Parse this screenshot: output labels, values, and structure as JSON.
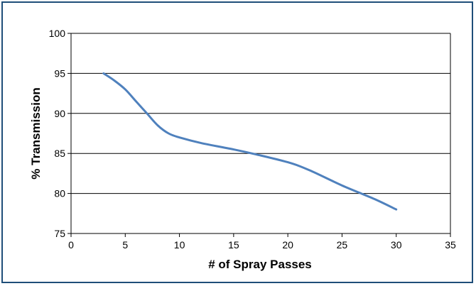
{
  "chart_data": {
    "type": "line",
    "title": "",
    "xlabel": "# of Spray Passes",
    "ylabel": "% Transmission",
    "xlim": [
      0,
      35
    ],
    "ylim": [
      75,
      100
    ],
    "xticks": [
      "0",
      "5",
      "10",
      "15",
      "20",
      "25",
      "30",
      "35"
    ],
    "yticks": [
      "75",
      "80",
      "85",
      "90",
      "95",
      "100"
    ],
    "grid": "horizontal",
    "legend": "none",
    "series": [
      {
        "color": "#4f81bd",
        "x": [
          3,
          4,
          5,
          6,
          7,
          8,
          9,
          10,
          12,
          15,
          17,
          20,
          22,
          25,
          28,
          30
        ],
        "y": [
          95,
          94.1,
          93,
          91.5,
          90,
          88.5,
          87.5,
          87,
          86.3,
          85.5,
          84.9,
          83.9,
          82.9,
          81,
          79.3,
          78
        ]
      }
    ]
  }
}
